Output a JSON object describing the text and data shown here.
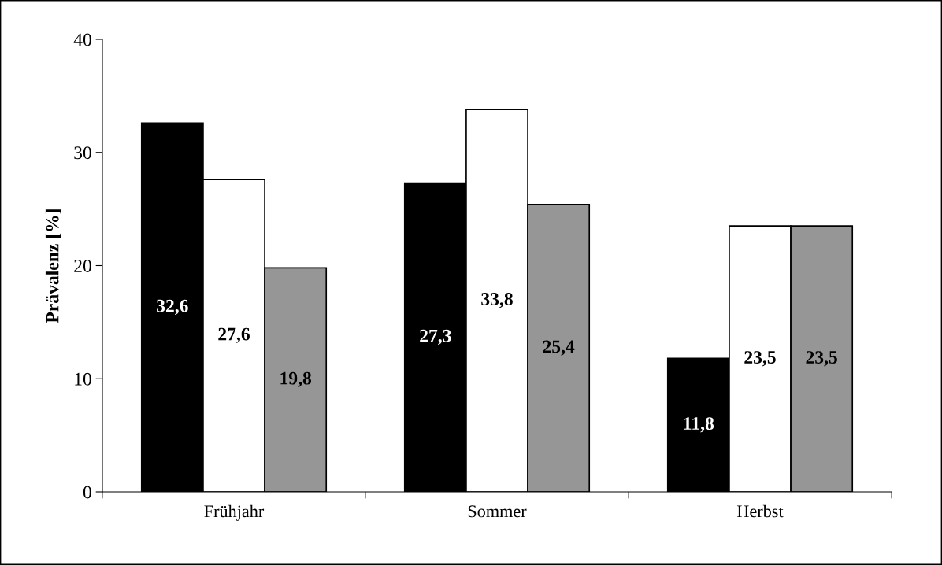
{
  "chart_data": {
    "type": "bar",
    "ylabel": "Prävalenz [%]",
    "categories": [
      "Frühjahr",
      "Sommer",
      "Herbst"
    ],
    "series": [
      {
        "color": "#000000",
        "values": [
          32.6,
          27.3,
          11.8
        ],
        "value_labels": [
          "32,6",
          "27,3",
          "11,8"
        ]
      },
      {
        "color": "#ffffff",
        "values": [
          27.6,
          33.8,
          23.5
        ],
        "value_labels": [
          "27,6",
          "33,8",
          "23,5"
        ]
      },
      {
        "color": "#969696",
        "values": [
          19.8,
          25.4,
          23.5
        ],
        "value_labels": [
          "19,8",
          "25,4",
          "23,5"
        ]
      }
    ],
    "ylim": [
      0,
      40
    ],
    "yticks": [
      0,
      10,
      20,
      30,
      40
    ],
    "grid": false,
    "legend": false
  }
}
